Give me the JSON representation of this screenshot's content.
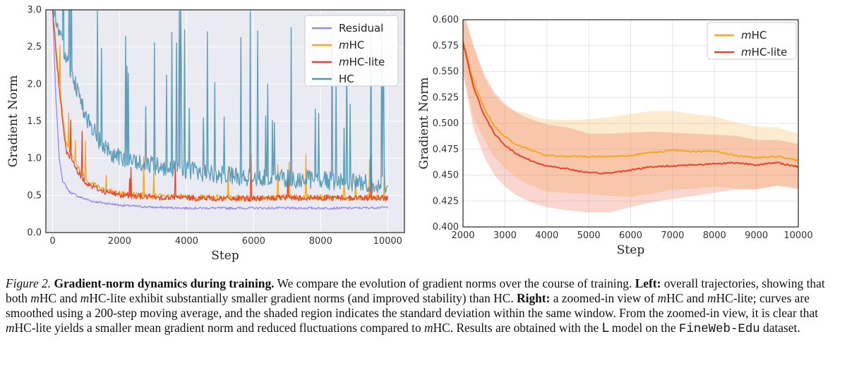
{
  "chart_data": [
    {
      "type": "line",
      "xlabel": "Step",
      "ylabel": "Gradient Norm",
      "xlim": [
        -200,
        10500
      ],
      "ylim": [
        0.0,
        3.0
      ],
      "xticks": [
        0,
        2000,
        4000,
        6000,
        8000,
        10000
      ],
      "yticks": [
        0.0,
        0.5,
        1.0,
        1.5,
        2.0,
        2.5,
        3.0
      ],
      "grid": true,
      "legend_position": "top-right",
      "series": [
        {
          "name": "Residual",
          "color": "#9b87e8",
          "x": [
            0,
            100,
            200,
            300,
            500,
            800,
            1200,
            2000,
            3000,
            4000,
            5000,
            6000,
            7000,
            8000,
            9000,
            10000
          ],
          "y": [
            3.0,
            1.8,
            1.0,
            0.7,
            0.55,
            0.48,
            0.42,
            0.37,
            0.34,
            0.33,
            0.33,
            0.33,
            0.33,
            0.33,
            0.33,
            0.34
          ]
        },
        {
          "name": "mHC",
          "color": "#f5a623",
          "x": [
            0,
            200,
            400,
            700,
            1000,
            1500,
            2000,
            3000,
            4000,
            5000,
            6000,
            7000,
            8000,
            9000,
            10000
          ],
          "y": [
            3.0,
            2.0,
            1.2,
            0.9,
            0.7,
            0.58,
            0.52,
            0.48,
            0.47,
            0.46,
            0.46,
            0.47,
            0.47,
            0.46,
            0.47
          ]
        },
        {
          "name": "mHC-lite",
          "color": "#e8452c",
          "x": [
            0,
            200,
            400,
            700,
            1000,
            1500,
            2000,
            3000,
            4000,
            5000,
            6000,
            7000,
            8000,
            9000,
            10000
          ],
          "y": [
            3.0,
            1.9,
            1.1,
            0.85,
            0.66,
            0.55,
            0.5,
            0.47,
            0.46,
            0.45,
            0.45,
            0.46,
            0.46,
            0.46,
            0.46
          ]
        },
        {
          "name": "HC",
          "color": "#4e96b4",
          "x": [
            0,
            200,
            500,
            800,
            1000,
            1500,
            2000,
            3000,
            4000,
            5000,
            6000,
            7000,
            8000,
            9000,
            10000
          ],
          "y": [
            3.0,
            2.6,
            2.2,
            1.8,
            1.5,
            1.1,
            0.95,
            0.85,
            0.8,
            0.72,
            0.7,
            0.68,
            0.66,
            0.62,
            0.6
          ]
        }
      ]
    },
    {
      "type": "line",
      "xlabel": "Step",
      "ylabel": "Gradient Norm",
      "xlim": [
        2000,
        10000
      ],
      "ylim": [
        0.4,
        0.6
      ],
      "xticks": [
        2000,
        3000,
        4000,
        5000,
        6000,
        7000,
        8000,
        9000,
        10000
      ],
      "yticks": [
        0.4,
        0.425,
        0.45,
        0.475,
        0.5,
        0.525,
        0.55,
        0.575,
        0.6
      ],
      "grid": true,
      "legend_position": "top-right",
      "series": [
        {
          "name": "mHC",
          "color": "#f5a623",
          "x": [
            2000,
            2250,
            2500,
            2750,
            3000,
            3250,
            3500,
            3750,
            4000,
            4500,
            5000,
            5500,
            6000,
            6500,
            7000,
            7500,
            8000,
            8500,
            9000,
            9500,
            10000
          ],
          "y": [
            0.58,
            0.54,
            0.515,
            0.497,
            0.487,
            0.48,
            0.476,
            0.472,
            0.469,
            0.468,
            0.468,
            0.468,
            0.469,
            0.472,
            0.474,
            0.473,
            0.473,
            0.469,
            0.467,
            0.468,
            0.464
          ],
          "std": [
            0.03,
            0.035,
            0.03,
            0.03,
            0.03,
            0.032,
            0.034,
            0.034,
            0.035,
            0.035,
            0.036,
            0.038,
            0.04,
            0.04,
            0.038,
            0.036,
            0.034,
            0.032,
            0.03,
            0.028,
            0.026
          ]
        },
        {
          "name": "mHC-lite",
          "color": "#e8452c",
          "x": [
            2000,
            2250,
            2500,
            2750,
            3000,
            3250,
            3500,
            3750,
            4000,
            4500,
            5000,
            5500,
            6000,
            6500,
            7000,
            7500,
            8000,
            8500,
            9000,
            9500,
            10000
          ],
          "y": [
            0.578,
            0.535,
            0.508,
            0.49,
            0.479,
            0.471,
            0.466,
            0.462,
            0.459,
            0.456,
            0.452,
            0.452,
            0.455,
            0.458,
            0.459,
            0.46,
            0.461,
            0.462,
            0.46,
            0.462,
            0.458
          ],
          "std": [
            0.03,
            0.04,
            0.04,
            0.04,
            0.04,
            0.04,
            0.04,
            0.04,
            0.04,
            0.04,
            0.038,
            0.038,
            0.036,
            0.034,
            0.032,
            0.03,
            0.028,
            0.026,
            0.024,
            0.022,
            0.022
          ]
        }
      ]
    }
  ],
  "caption": {
    "label": "Figure 2.",
    "title": "Gradient-norm dynamics during training.",
    "s1": " We compare the evolution of gradient norms over the course of training. ",
    "left_label": "Left:",
    "s2a": " overall trajectories, showing that both ",
    "m1": "m",
    "s2b": "HC and ",
    "m2": "m",
    "s2c": "HC-lite exhibit substantially smaller gradient norms (and improved stability) than HC.",
    "right_label": "Right:",
    "s3a": " a zoomed-in view of ",
    "m3": "m",
    "s3b": "HC and ",
    "m4": "m",
    "s3c": "HC-lite; curves are smoothed using a 200-step moving average, and the shaded region indicates the standard deviation within the same window. From the zoomed-in view, it is clear that ",
    "m5": "m",
    "s3d": "HC-lite yields a smaller mean gradient norm and reduced fluctuations compared to ",
    "m6": "m",
    "s3e": "HC. Results are obtained with the ",
    "model": "L",
    "s3f": " model on the ",
    "dataset": "FineWeb-Edu",
    "s3g": " dataset."
  }
}
